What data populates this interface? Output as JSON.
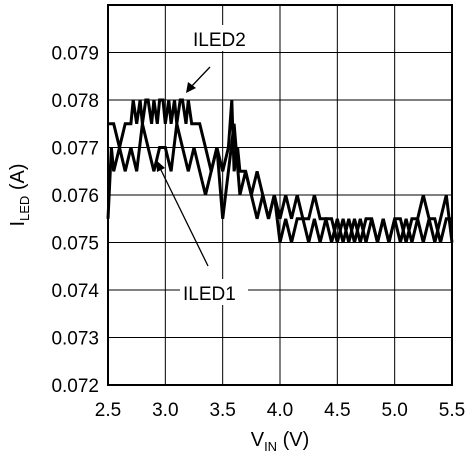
{
  "chart_data": {
    "type": "line",
    "xlabel": {
      "main": "V",
      "sub": "IN",
      "unit": " (V)"
    },
    "ylabel": {
      "main": "I",
      "sub": "LED",
      "unit": " (A)"
    },
    "xlim": [
      2.5,
      5.5
    ],
    "ylim": [
      0.072,
      0.08
    ],
    "xticks": [
      "2.5",
      "3.0",
      "3.5",
      "4.0",
      "4.5",
      "5.0",
      "5.5"
    ],
    "yticks": [
      "0.072",
      "0.073",
      "0.074",
      "0.075",
      "0.076",
      "0.077",
      "0.078",
      "0.079"
    ],
    "grid": true,
    "annotations": [
      "ILED2",
      "ILED1"
    ],
    "series": [
      {
        "name": "ILED2",
        "x": [
          2.5,
          2.55,
          2.6,
          2.65,
          2.7,
          2.72,
          2.75,
          2.78,
          2.8,
          2.83,
          2.85,
          2.88,
          2.9,
          2.93,
          2.95,
          2.98,
          3.0,
          3.03,
          3.05,
          3.08,
          3.1,
          3.13,
          3.15,
          3.18,
          3.2,
          3.23,
          3.25,
          3.3,
          3.35,
          3.4,
          3.45,
          3.5,
          3.55,
          3.58,
          3.6,
          3.63,
          3.65,
          3.7,
          3.75,
          3.8,
          3.85,
          3.9,
          3.95,
          4.0,
          4.05,
          4.1,
          4.15,
          4.2,
          4.25,
          4.3,
          4.35,
          4.4,
          4.45,
          4.5,
          4.55,
          4.6,
          4.65,
          4.7,
          4.75,
          4.8,
          4.85,
          4.9,
          4.95,
          5.0,
          5.05,
          5.1,
          5.15,
          5.2,
          5.25,
          5.3,
          5.35,
          5.4,
          5.45,
          5.5
        ],
        "y": [
          0.0775,
          0.0775,
          0.077,
          0.0775,
          0.0775,
          0.078,
          0.0775,
          0.078,
          0.0775,
          0.078,
          0.078,
          0.0775,
          0.078,
          0.0775,
          0.078,
          0.078,
          0.0775,
          0.078,
          0.0775,
          0.078,
          0.0775,
          0.078,
          0.078,
          0.0775,
          0.078,
          0.0775,
          0.0775,
          0.0775,
          0.077,
          0.0765,
          0.077,
          0.0765,
          0.077,
          0.078,
          0.0765,
          0.077,
          0.0765,
          0.0765,
          0.076,
          0.0765,
          0.076,
          0.0755,
          0.076,
          0.0755,
          0.076,
          0.0755,
          0.076,
          0.0755,
          0.0755,
          0.076,
          0.0755,
          0.0755,
          0.075,
          0.0755,
          0.075,
          0.0755,
          0.075,
          0.0755,
          0.075,
          0.0755,
          0.075,
          0.0755,
          0.075,
          0.0755,
          0.075,
          0.0755,
          0.075,
          0.0755,
          0.076,
          0.0755,
          0.075,
          0.0755,
          0.076,
          0.075
        ]
      },
      {
        "name": "ILED1",
        "x": [
          2.5,
          2.53,
          2.55,
          2.6,
          2.65,
          2.7,
          2.75,
          2.8,
          2.85,
          2.9,
          2.95,
          3.0,
          3.05,
          3.1,
          3.15,
          3.2,
          3.25,
          3.3,
          3.35,
          3.4,
          3.45,
          3.5,
          3.55,
          3.6,
          3.65,
          3.7,
          3.75,
          3.8,
          3.85,
          3.9,
          3.95,
          4.0,
          4.05,
          4.1,
          4.15,
          4.2,
          4.25,
          4.3,
          4.35,
          4.4,
          4.45,
          4.5,
          4.55,
          4.6,
          4.65,
          4.7,
          4.75,
          4.8,
          4.85,
          4.9,
          4.95,
          5.0,
          5.05,
          5.1,
          5.15,
          5.2,
          5.25,
          5.3,
          5.35,
          5.4,
          5.45,
          5.5
        ],
        "y": [
          0.0755,
          0.077,
          0.0765,
          0.077,
          0.0765,
          0.077,
          0.0765,
          0.0775,
          0.077,
          0.0765,
          0.077,
          0.077,
          0.0765,
          0.0775,
          0.077,
          0.0765,
          0.077,
          0.0765,
          0.076,
          0.0765,
          0.077,
          0.0755,
          0.0765,
          0.0775,
          0.076,
          0.0765,
          0.076,
          0.0755,
          0.076,
          0.0755,
          0.076,
          0.075,
          0.0755,
          0.075,
          0.0755,
          0.0755,
          0.075,
          0.0755,
          0.075,
          0.0755,
          0.0755,
          0.075,
          0.0755,
          0.075,
          0.0755,
          0.075,
          0.0755,
          0.0755,
          0.075,
          0.0755,
          0.075,
          0.0755,
          0.0755,
          0.075,
          0.0755,
          0.0755,
          0.075,
          0.0755,
          0.0755,
          0.075,
          0.0755,
          0.0755
        ]
      }
    ]
  }
}
